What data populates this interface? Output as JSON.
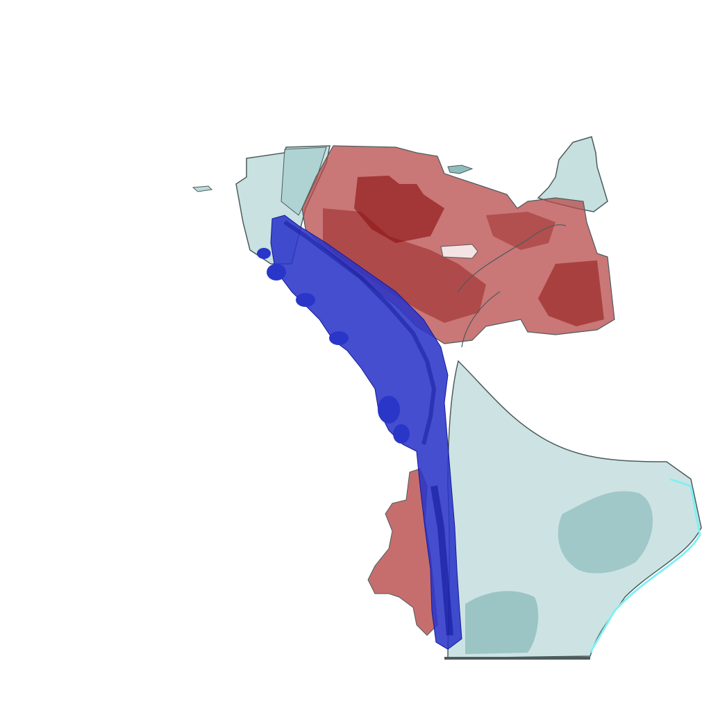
{
  "scene": {
    "description_visible_text": "",
    "colors": {
      "background": "#ffffff",
      "translucent_surface": "#bcd9d9",
      "translucent_surface_shadow": "#8fbcbd",
      "red_structure": "#b84a4a",
      "red_structure_dark": "#8e1414",
      "blue_structure": "#2a36c8",
      "blue_structure_dark": "#14189a",
      "outline": "#4c5b5c",
      "edge_highlight": "#7ff0f4"
    }
  }
}
